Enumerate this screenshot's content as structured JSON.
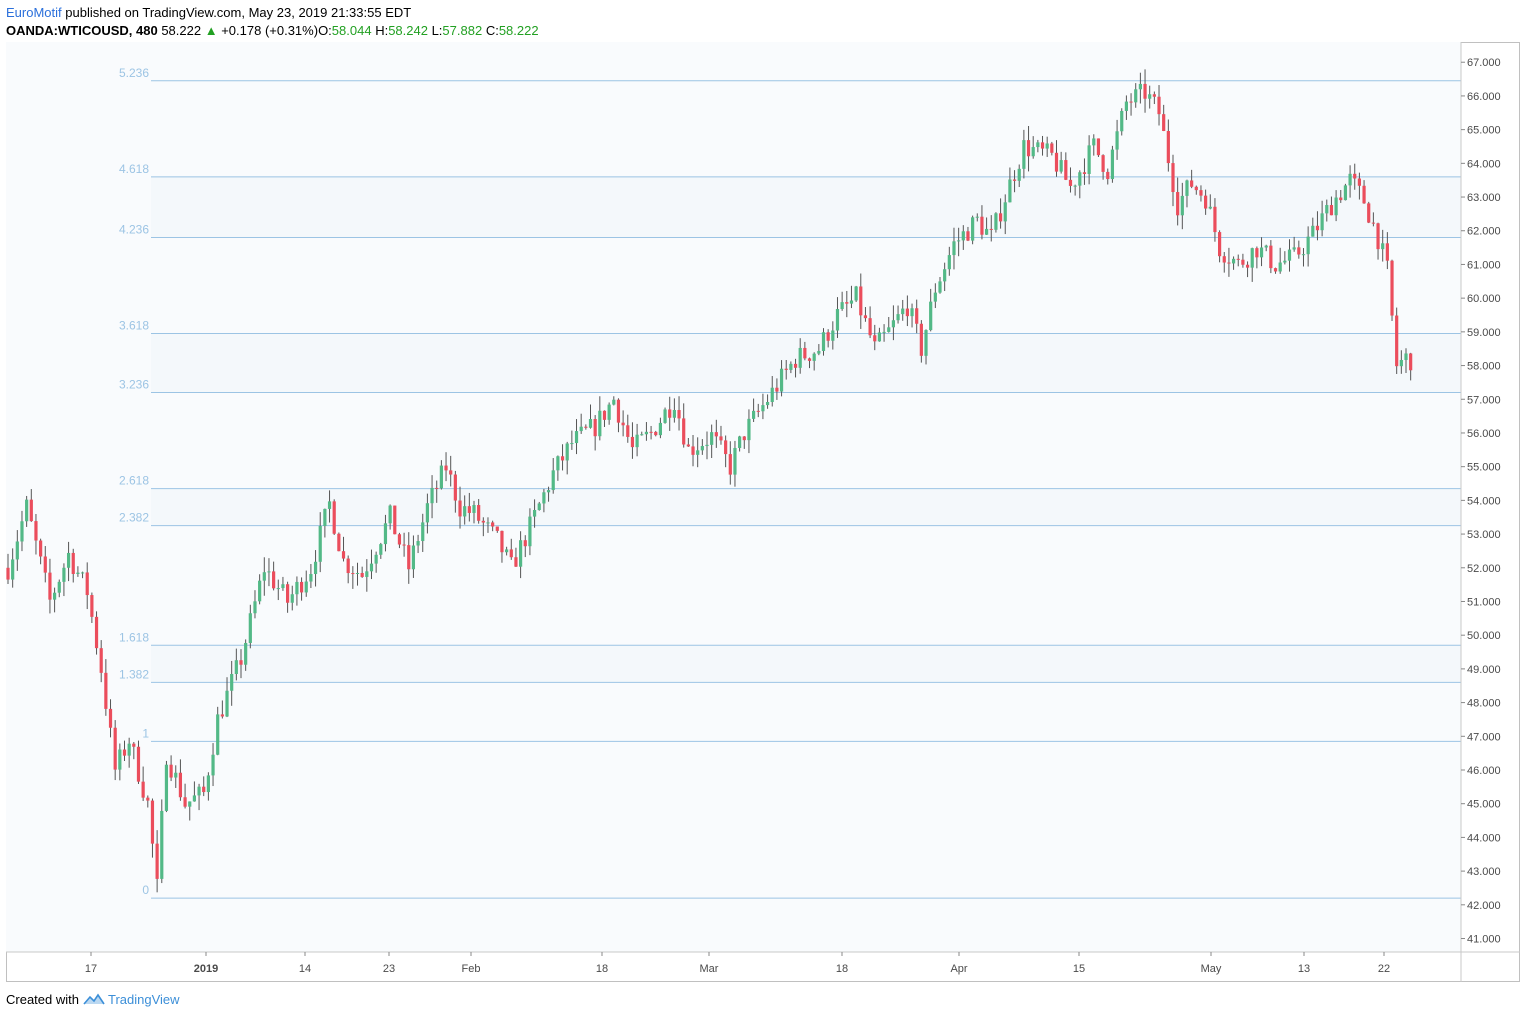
{
  "header": {
    "publisher": "EuroMotif",
    "published_text": "published on TradingView.com, May 23, 2019 21:33:55 EDT",
    "symbol": "OANDA:WTICOUSD, 480",
    "last": "58.222",
    "change": "+0.178 (+0.31%)",
    "o_label": "O:",
    "o_value": "58.044",
    "h_label": "H:",
    "h_value": "58.242",
    "l_label": "L:",
    "l_value": "57.882",
    "c_label": "C:",
    "c_value": "58.222"
  },
  "footer": {
    "created_with": "Created with",
    "brand": "TradingView"
  },
  "colors": {
    "up": "#53b987",
    "down": "#eb4d5c",
    "fib_line": "#9cc4e4",
    "fib_band": "#f4f8fb",
    "plot_bg": "#f9fbfd",
    "accent_text": "#22a022"
  },
  "chart_data": {
    "type": "candlestick",
    "title": "",
    "xlabel": "",
    "ylabel": "",
    "ylim": [
      40.6,
      67.6
    ],
    "y_ticks": [
      "41.000",
      "42.000",
      "43.000",
      "44.000",
      "45.000",
      "46.000",
      "47.000",
      "48.000",
      "49.000",
      "50.000",
      "51.000",
      "52.000",
      "53.000",
      "54.000",
      "55.000",
      "56.000",
      "57.000",
      "58.000",
      "59.000",
      "60.000",
      "61.000",
      "62.000",
      "63.000",
      "64.000",
      "65.000",
      "66.000",
      "67.000"
    ],
    "x_ticks": [
      "17",
      "2019",
      "14",
      "23",
      "Feb",
      "18",
      "Mar",
      "18",
      "Apr",
      "15",
      "May",
      "13",
      "22"
    ],
    "fib_levels": [
      {
        "label": "0",
        "price": 42.2
      },
      {
        "label": "1",
        "price": 46.85
      },
      {
        "label": "1.382",
        "price": 48.6
      },
      {
        "label": "1.618",
        "price": 49.7
      },
      {
        "label": "2.382",
        "price": 53.25
      },
      {
        "label": "2.618",
        "price": 54.35
      },
      {
        "label": "3.236",
        "price": 57.2
      },
      {
        "label": "3.618",
        "price": 58.95
      },
      {
        "label": "4.236",
        "price": 61.8
      },
      {
        "label": "4.618",
        "price": 63.6
      },
      {
        "label": "5.236",
        "price": 66.45
      }
    ],
    "fib_shaded_bands": [
      [
        "1.382",
        "1.618"
      ],
      [
        "2.382",
        "2.618"
      ],
      [
        "3.236",
        "3.618"
      ],
      [
        "4.236",
        "4.618"
      ]
    ],
    "price_path": [
      [
        0,
        52.0
      ],
      [
        4,
        53.8
      ],
      [
        9,
        51.0
      ],
      [
        13,
        52.4
      ],
      [
        17,
        51.3
      ],
      [
        20,
        49.0
      ],
      [
        23,
        46.0
      ],
      [
        26,
        46.9
      ],
      [
        30,
        45.0
      ],
      [
        32,
        42.5
      ],
      [
        34,
        46.5
      ],
      [
        38,
        45.0
      ],
      [
        42,
        45.3
      ],
      [
        45,
        47.5
      ],
      [
        50,
        49.3
      ],
      [
        55,
        52.0
      ],
      [
        60,
        51.0
      ],
      [
        65,
        52.0
      ],
      [
        69,
        53.9
      ],
      [
        72,
        52.2
      ],
      [
        76,
        51.8
      ],
      [
        82,
        53.5
      ],
      [
        86,
        52.0
      ],
      [
        90,
        53.8
      ],
      [
        94,
        55.0
      ],
      [
        97,
        53.8
      ],
      [
        100,
        53.6
      ],
      [
        105,
        52.8
      ],
      [
        108,
        52.0
      ],
      [
        112,
        53.2
      ],
      [
        117,
        54.8
      ],
      [
        121,
        55.7
      ],
      [
        126,
        56.2
      ],
      [
        130,
        57.0
      ],
      [
        134,
        55.5
      ],
      [
        138,
        56.0
      ],
      [
        143,
        57.0
      ],
      [
        146,
        55.5
      ],
      [
        151,
        55.9
      ],
      [
        155,
        55.0
      ],
      [
        158,
        56.0
      ],
      [
        164,
        57.2
      ],
      [
        169,
        58.2
      ],
      [
        174,
        58.5
      ],
      [
        178,
        59.5
      ],
      [
        182,
        60.0
      ],
      [
        186,
        58.5
      ],
      [
        189,
        59.0
      ],
      [
        193,
        59.8
      ],
      [
        196,
        58.5
      ],
      [
        199,
        60.3
      ],
      [
        203,
        61.6
      ],
      [
        208,
        62.3
      ],
      [
        211,
        61.8
      ],
      [
        214,
        63.0
      ],
      [
        218,
        64.5
      ],
      [
        224,
        64.2
      ],
      [
        228,
        63.3
      ],
      [
        233,
        64.5
      ],
      [
        236,
        63.8
      ],
      [
        240,
        65.8
      ],
      [
        244,
        66.1
      ],
      [
        247,
        65.5
      ],
      [
        251,
        62.8
      ],
      [
        254,
        63.4
      ],
      [
        257,
        63.0
      ],
      [
        260,
        61.5
      ],
      [
        264,
        61.0
      ],
      [
        268,
        61.5
      ],
      [
        272,
        61.0
      ],
      [
        276,
        61.2
      ],
      [
        280,
        61.9
      ],
      [
        284,
        62.8
      ],
      [
        288,
        63.5
      ],
      [
        291,
        62.9
      ],
      [
        294,
        61.8
      ],
      [
        296,
        60.8
      ],
      [
        298,
        58.0
      ],
      [
        300,
        58.2
      ]
    ]
  }
}
